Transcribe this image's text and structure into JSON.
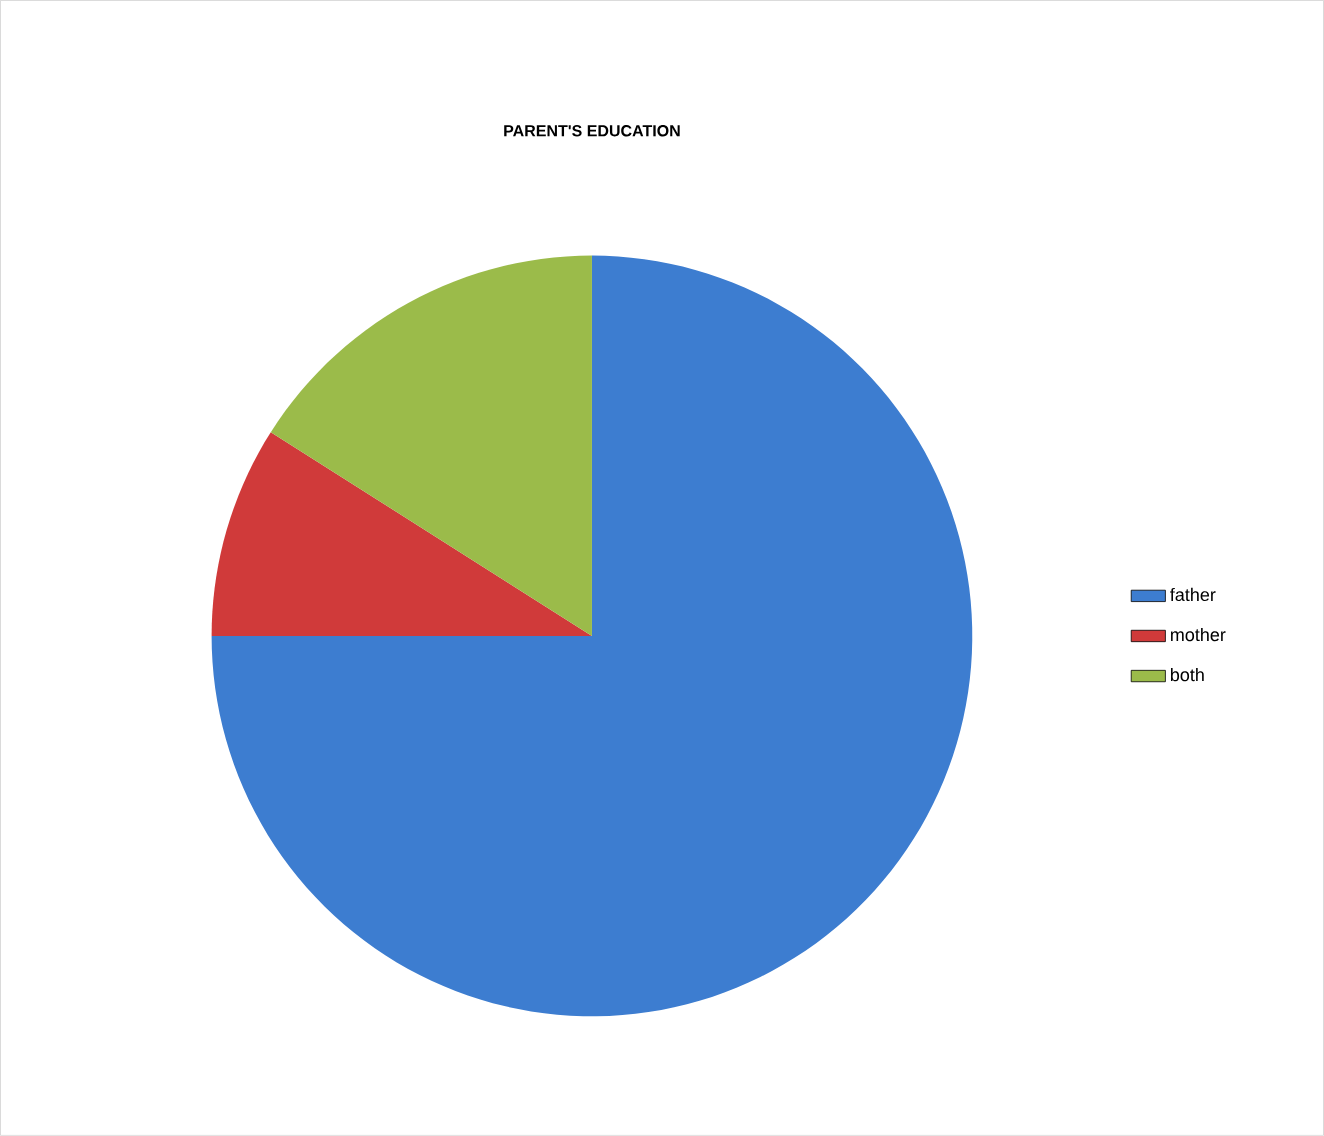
{
  "chart_data": {
    "type": "pie",
    "title": "PARENT'S EDUCATION",
    "categories": [
      "father",
      "mother",
      "both"
    ],
    "values": [
      75,
      9,
      16
    ],
    "colors": [
      "#3d7dd0",
      "#d03a3a",
      "#9bbb4a"
    ],
    "legend": "right"
  }
}
